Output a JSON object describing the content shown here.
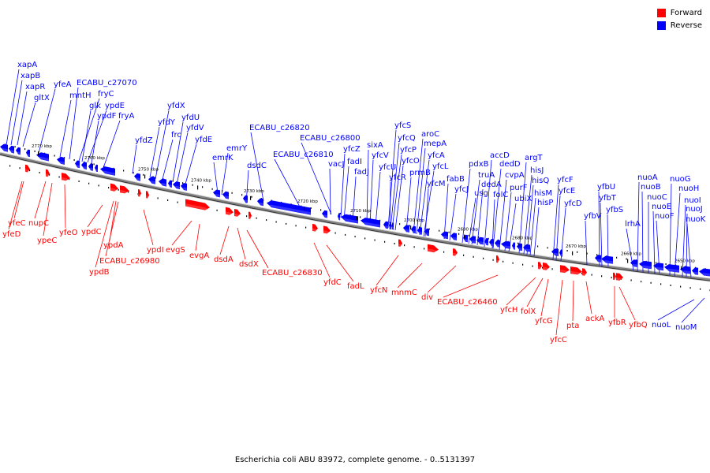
{
  "legend": {
    "forward_label": "Forward",
    "reverse_label": "Reverse",
    "forward_color": "#ff0000",
    "reverse_color": "#0000ff"
  },
  "caption": "Escherichia coli ABU 83972, complete genome. - 0..5131397",
  "backbone_color": "#808080",
  "scale_labels": [
    "2770 kbp",
    "2760 kbp",
    "2750 kbp",
    "2740 kbp",
    "2730 kbp",
    "2720 kbp",
    "2710 kbp",
    "2700 kbp",
    "2690 kbp",
    "2680 kbp",
    "2670 kbp",
    "2660 kbp",
    "2650 kbp"
  ],
  "reverse_genes": [
    "xapA",
    "xapB",
    "xapR",
    "gltX",
    "yfeA",
    "mntH",
    "ECABU_c27070",
    "fryC",
    "glk",
    "ypdE",
    "ypdF",
    "fryA",
    "yfdX",
    "yfdU",
    "yfdY",
    "yfdV",
    "frc",
    "yfdE",
    "yfdZ",
    "emrY",
    "emrK",
    "dsdC",
    "ECABU_c26820",
    "ECABU_c26810",
    "ECABU_c26800",
    "vacJ",
    "fadI",
    "yfcZ",
    "fadJ",
    "sixA",
    "yfcV",
    "yfcU",
    "yfcS",
    "yfcQ",
    "yfcP",
    "yfcO",
    "yfcR",
    "prmB",
    "aroC",
    "mepA",
    "yfcA",
    "yfcL",
    "yfcM",
    "fabB",
    "yfcJ",
    "pdxB",
    "truA",
    "usg",
    "dedA",
    "accD",
    "dedD",
    "folC",
    "cvpA",
    "purF",
    "ubiX",
    "argT",
    "hisJ",
    "hisQ",
    "hisM",
    "hisP",
    "yfcF",
    "yfcE",
    "yfcD",
    "yfbU",
    "yfbT",
    "yfbV",
    "yfbS",
    "lrhA",
    "nuoA",
    "nuoB",
    "nuoC",
    "nuoE",
    "nuoF",
    "nuoG",
    "nuoH",
    "nuoI",
    "nuoJ",
    "nuoK"
  ],
  "forward_genes": [
    "yfeC",
    "yfeD",
    "nupC",
    "ypeC",
    "yfeO",
    "ypdC",
    "ypdA",
    "ECABU_c26980",
    "ypdB",
    "ypdI",
    "evgS",
    "evgA",
    "dsdA",
    "dsdX",
    "ECABU_c26830",
    "yfdC",
    "fadL",
    "yfcN",
    "mnmC",
    "div",
    "ECABU_c26460",
    "yfcH",
    "folX",
    "yfcG",
    "yfcC",
    "pta",
    "ackA",
    "yfbR",
    "yfbQ",
    "nuoL",
    "nuoM"
  ]
}
